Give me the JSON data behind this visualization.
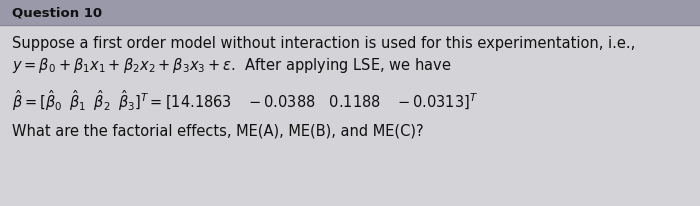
{
  "header_text": "Question 10",
  "header_bg": "#9999aa",
  "body_bg": "#d4d4d8",
  "line1": "Suppose a first order model without interaction is used for this experimentation, i.e.,",
  "line4": "What are the factorial effects, ME(A), ME(B), and ME(C)?",
  "text_color": "#111111",
  "font_size_header": 9.5,
  "font_size_body": 10.5
}
